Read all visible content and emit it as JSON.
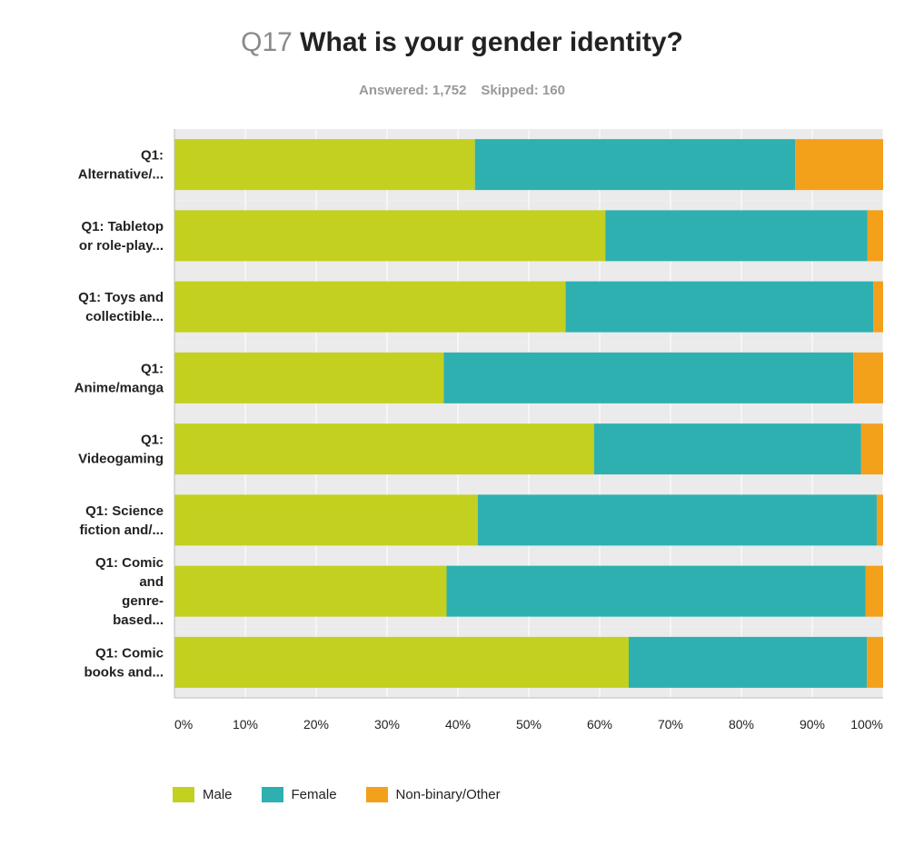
{
  "header": {
    "question_number": "Q17",
    "question_text": "What is your gender identity?",
    "answered": "Answered: 1,752",
    "skipped": "Skipped: 160"
  },
  "chart_data": {
    "type": "bar",
    "orientation": "horizontal",
    "stacked": true,
    "title": "What is your gender identity?",
    "categories": [
      [
        "Q1:",
        "Alternative/..."
      ],
      [
        "Q1: Tabletop",
        "or role-play..."
      ],
      [
        "Q1: Toys and",
        "collectible..."
      ],
      [
        "Q1:",
        "Anime/manga"
      ],
      [
        "Q1:",
        "Videogaming"
      ],
      [
        "Q1: Science",
        "fiction and/..."
      ],
      [
        "Q1: Comic",
        "and",
        "genre-",
        "based..."
      ],
      [
        "Q1: Comic",
        "books and..."
      ]
    ],
    "series": [
      {
        "name": "Male",
        "color": "#c3d01f",
        "values": [
          42.4,
          60.8,
          55.2,
          38.0,
          59.2,
          42.8,
          38.4,
          64.1
        ]
      },
      {
        "name": "Female",
        "color": "#2eb0b1",
        "values": [
          45.2,
          37.0,
          43.4,
          57.8,
          37.7,
          56.3,
          59.1,
          33.6
        ]
      },
      {
        "name": "Non-binary/Other",
        "color": "#f3a01b",
        "values": [
          12.4,
          2.2,
          1.4,
          4.2,
          3.1,
          0.9,
          2.5,
          2.3
        ]
      }
    ],
    "x_ticks": [
      "0%",
      "10%",
      "20%",
      "30%",
      "40%",
      "50%",
      "60%",
      "70%",
      "80%",
      "90%",
      "100%"
    ],
    "xlim": [
      0,
      100
    ],
    "grid": true,
    "legend_position": "bottom-left"
  }
}
